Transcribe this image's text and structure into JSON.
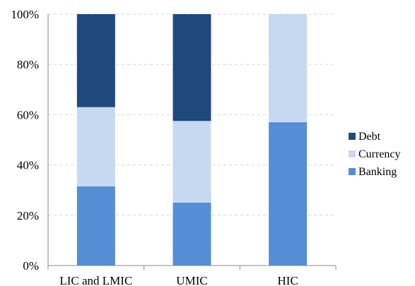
{
  "chart_data": {
    "type": "bar",
    "stacked": true,
    "categories": [
      "LIC and LMIC",
      "UMIC",
      "HIC"
    ],
    "series": [
      {
        "name": "Banking",
        "values": [
          31.5,
          25,
          57
        ],
        "color": "#558ed5"
      },
      {
        "name": "Currency",
        "values": [
          31.5,
          32.5,
          43
        ],
        "color": "#c6d9f1"
      },
      {
        "name": "Debt",
        "values": [
          37,
          42.5,
          0
        ],
        "color": "#1f497d"
      }
    ],
    "legend_order": [
      "Debt",
      "Currency",
      "Banking"
    ],
    "yticks": [
      "0%",
      "20%",
      "40%",
      "60%",
      "80%",
      "100%"
    ],
    "ytick_values": [
      0,
      20,
      40,
      60,
      80,
      100
    ],
    "ylim": [
      0,
      100
    ],
    "title": "",
    "xlabel": "",
    "ylabel": "",
    "grid": true,
    "legend_position": "right"
  }
}
